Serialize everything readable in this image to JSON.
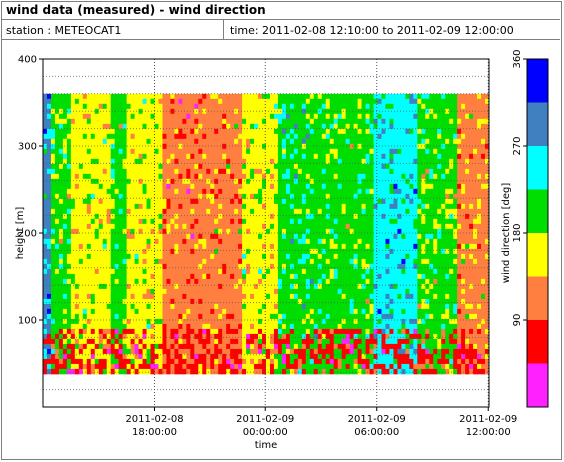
{
  "header": {
    "title": "wind data (measured) - wind direction",
    "station": "station : METEOCAT1",
    "time_range": "time: 2011-02-08 12:10:00 to 2011-02-09 12:00:00"
  },
  "chart_data": {
    "type": "heatmap",
    "title": "wind data (measured) - wind direction",
    "xlabel": "time",
    "ylabel": "height [m]",
    "colorbar_label": "wind direction [deg]",
    "ylim": [
      0,
      400
    ],
    "yticks": [
      100,
      200,
      300,
      400
    ],
    "xticks": [
      {
        "line1": "2011-02-08",
        "line2": "18:00:00"
      },
      {
        "line1": "2011-02-09",
        "line2": "00:00:00"
      },
      {
        "line1": "2011-02-09",
        "line2": "06:00:00"
      },
      {
        "line1": "2011-02-09",
        "line2": "12:00:00"
      }
    ],
    "colorbar_range": [
      0,
      360
    ],
    "colorbar_ticks": [
      90,
      180,
      270,
      360
    ],
    "colorbar_bins": [
      {
        "from": 0,
        "to": 45,
        "color": "#ff22ff"
      },
      {
        "from": 45,
        "to": 90,
        "color": "#ff0000"
      },
      {
        "from": 90,
        "to": 135,
        "color": "#ff7f40"
      },
      {
        "from": 135,
        "to": 180,
        "color": "#ffff00"
      },
      {
        "from": 180,
        "to": 225,
        "color": "#00dd00"
      },
      {
        "from": 225,
        "to": 270,
        "color": "#00ffff"
      },
      {
        "from": 270,
        "to": 315,
        "color": "#4080c0"
      },
      {
        "from": 315,
        "to": 360,
        "color": "#0000ff"
      }
    ],
    "height_range_m": [
      38,
      360
    ],
    "grid": true,
    "regions": [
      {
        "t_start": 0.0,
        "t_end": 0.02,
        "direction": 270
      },
      {
        "t_start": 0.02,
        "t_end": 0.06,
        "direction": 200
      },
      {
        "t_start": 0.06,
        "t_end": 0.15,
        "direction": 160
      },
      {
        "t_start": 0.15,
        "t_end": 0.19,
        "direction": 200
      },
      {
        "t_start": 0.19,
        "t_end": 0.27,
        "direction": 160
      },
      {
        "t_start": 0.27,
        "t_end": 0.36,
        "direction": 110
      },
      {
        "t_start": 0.36,
        "t_end": 0.45,
        "direction": 115
      },
      {
        "t_start": 0.45,
        "t_end": 0.53,
        "direction": 160
      },
      {
        "t_start": 0.53,
        "t_end": 0.62,
        "direction": 210
      },
      {
        "t_start": 0.62,
        "t_end": 0.74,
        "direction": 200
      },
      {
        "t_start": 0.74,
        "t_end": 0.84,
        "direction": 250
      },
      {
        "t_start": 0.84,
        "t_end": 0.93,
        "direction": 195
      },
      {
        "t_start": 0.93,
        "t_end": 1.0,
        "direction": 120
      }
    ]
  }
}
